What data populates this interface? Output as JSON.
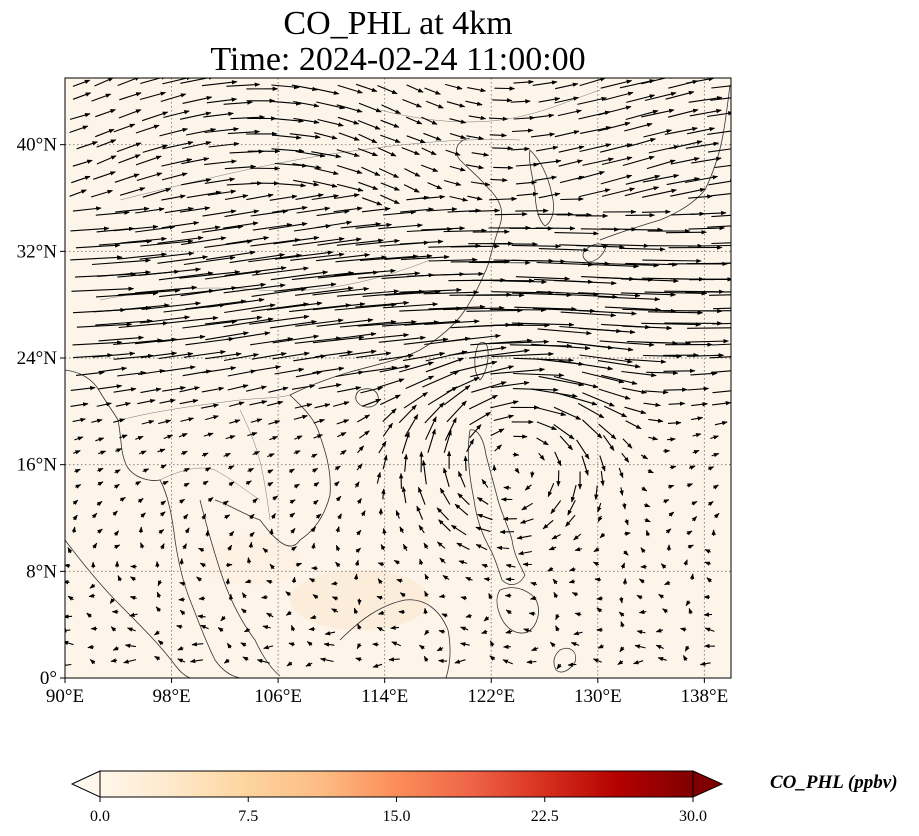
{
  "title": {
    "line1": "CO_PHL at 4km",
    "line2": "Time: 2024-02-24 11:00:00"
  },
  "map": {
    "variable": "CO_PHL",
    "field": "near-zero CO concentration with wind vectors",
    "background_color": "#fdf5ea",
    "extent": {
      "lon": [
        90,
        140
      ],
      "lat": [
        0,
        45
      ]
    },
    "lon_ticks": [
      "90°E",
      "98°E",
      "106°E",
      "114°E",
      "122°E",
      "130°E",
      "138°E"
    ],
    "lat_ticks": [
      "0°",
      "8°N",
      "16°N",
      "24°N",
      "32°N",
      "40°N"
    ],
    "gridlines": "dotted"
  },
  "colorbar": {
    "label": "CO_PHL (ppbv)",
    "colormap": "OrRd",
    "range": [
      0,
      30
    ],
    "ticks": [
      "0.0",
      "7.5",
      "15.0",
      "22.5",
      "30.0"
    ],
    "extend": "both",
    "colors": [
      "#fff7ec",
      "#fee8c8",
      "#fdd49e",
      "#fdbb84",
      "#fc8d59",
      "#ef6548",
      "#d7301f",
      "#b30000",
      "#7f0000"
    ]
  }
}
